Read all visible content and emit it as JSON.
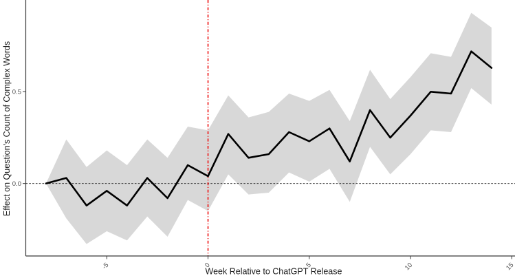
{
  "chart_data": {
    "type": "line",
    "title": "",
    "xlabel": "Week Relative to ChatGPT Release",
    "ylabel": "Effect on Question's Count of Complex Words",
    "grid": "off",
    "legend": "none",
    "x": [
      -8,
      -7,
      -6,
      -5,
      -4,
      -3,
      -2,
      -1,
      0,
      1,
      2,
      3,
      4,
      5,
      6,
      7,
      8,
      9,
      10,
      11,
      12,
      13,
      14
    ],
    "series": [
      {
        "name": "estimate",
        "values": [
          0.0,
          0.03,
          -0.12,
          -0.04,
          -0.12,
          0.03,
          -0.08,
          0.1,
          0.04,
          0.27,
          0.14,
          0.16,
          0.28,
          0.23,
          0.3,
          0.12,
          0.4,
          0.25,
          0.37,
          0.5,
          0.49,
          0.72,
          0.63
        ]
      },
      {
        "name": "ci_lower",
        "values": [
          0.0,
          -0.19,
          -0.33,
          -0.26,
          -0.31,
          -0.18,
          -0.29,
          -0.09,
          -0.15,
          0.05,
          -0.06,
          -0.05,
          0.06,
          0.01,
          0.08,
          -0.1,
          0.2,
          0.05,
          0.16,
          0.29,
          0.28,
          0.52,
          0.43
        ]
      },
      {
        "name": "ci_upper",
        "values": [
          0.0,
          0.24,
          0.09,
          0.18,
          0.1,
          0.24,
          0.14,
          0.31,
          0.29,
          0.48,
          0.36,
          0.39,
          0.49,
          0.45,
          0.51,
          0.34,
          0.62,
          0.46,
          0.58,
          0.71,
          0.69,
          0.93,
          0.85
        ]
      }
    ],
    "x_ticks": {
      "values": [
        -5,
        0,
        5,
        10,
        15
      ],
      "labels": [
        "-5",
        "0",
        "5",
        "10",
        "15"
      ]
    },
    "y_ticks": {
      "values": [
        0.0,
        0.5
      ],
      "labels": [
        "0.0",
        "0.5"
      ]
    },
    "xlim": [
      -9.0,
      15.16
    ],
    "ylim": [
      -0.395,
      1.0
    ],
    "reference_lines": {
      "vertical_x": 0,
      "horizontal_y": 0
    },
    "colors": {
      "estimate_line": "#000000",
      "confidence_band": "#d8d8d8",
      "release_vline": "#ee1111",
      "zero_line": "#1a1a1a",
      "axis": "#3a3a3a",
      "tick_label": "#4d4d4d",
      "axis_title": "#1c1c1c"
    }
  }
}
